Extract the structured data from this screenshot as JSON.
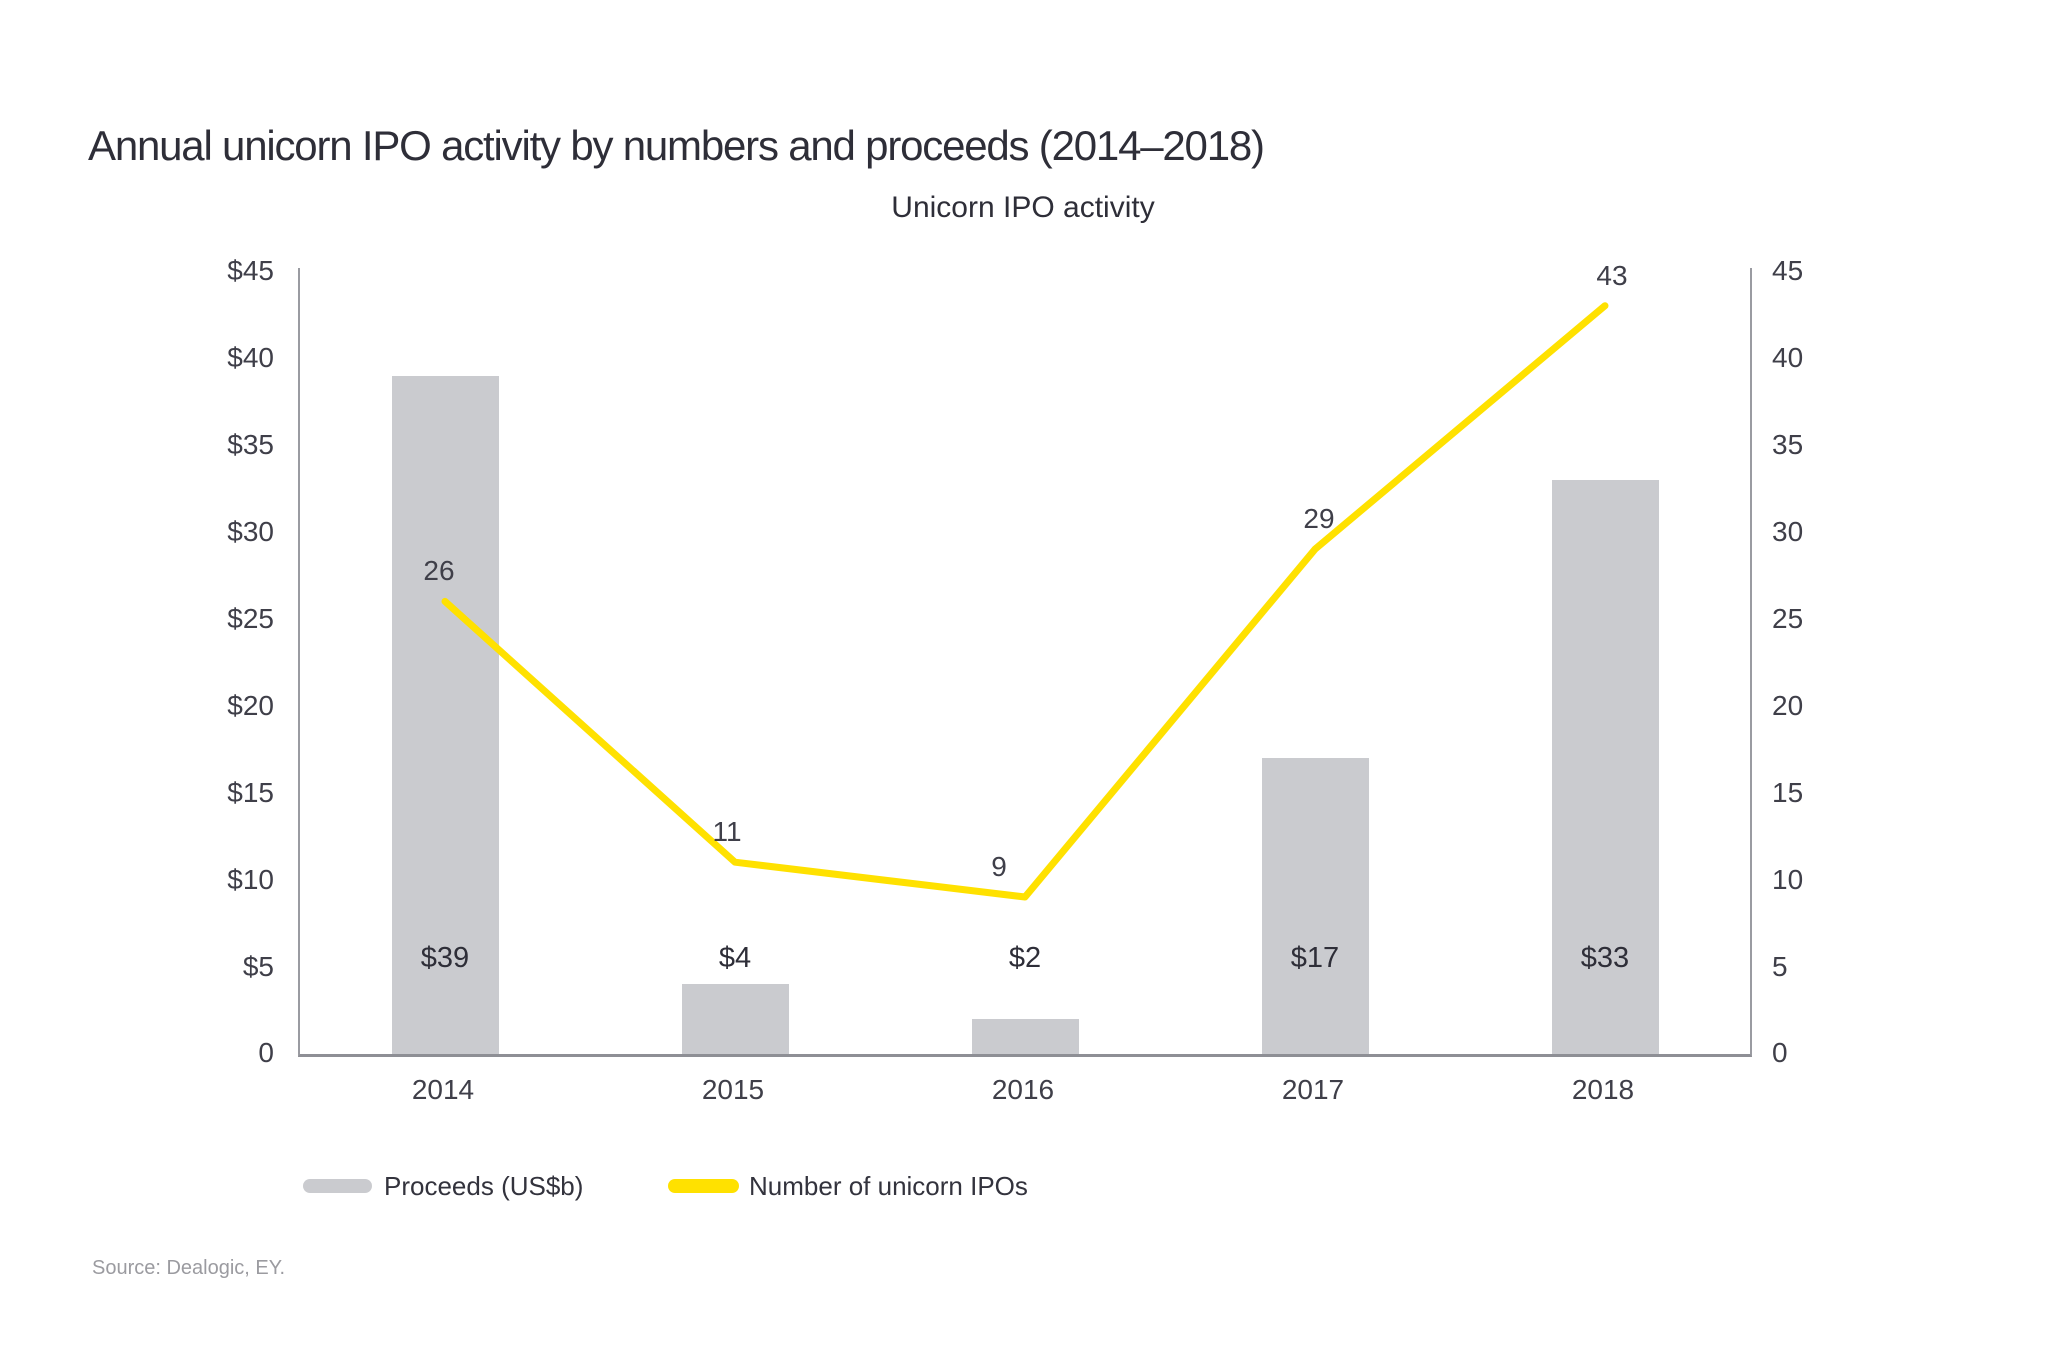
{
  "page": {
    "title": "Annual unicorn IPO activity by numbers and proceeds (2014–2018)",
    "source": "Source: Dealogic, EY.",
    "background": "#FFFFFF"
  },
  "colors": {
    "text_dark": "#2E2E38",
    "axis_text": "#3F3F49",
    "axis_line": "#9A9BA1",
    "source_text": "#9B9BA0"
  },
  "chart_data": {
    "type": "combo",
    "title": "Unicorn IPO activity",
    "categories": [
      "2014",
      "2015",
      "2016",
      "2017",
      "2018"
    ],
    "series": [
      {
        "name": "Proceeds (US$b)",
        "type": "bar",
        "values": [
          39,
          4,
          2,
          17,
          33
        ],
        "value_labels": [
          "$39",
          "$4",
          "$2",
          "$17",
          "$33"
        ],
        "color": "#CACBCF"
      },
      {
        "name": "Number of unicorn IPOs",
        "type": "line",
        "values": [
          26,
          11,
          9,
          29,
          43
        ],
        "value_labels": [
          "26",
          "11",
          "9",
          "29",
          "43"
        ],
        "color": "#FFE100"
      }
    ],
    "left_axis": {
      "ticks": [
        "$45",
        "$40",
        "$35",
        "$30",
        "$25",
        "$20",
        "$15",
        "$10",
        "$5",
        "0"
      ],
      "range": [
        0,
        45
      ]
    },
    "right_axis": {
      "ticks": [
        "45",
        "40",
        "35",
        "30",
        "25",
        "20",
        "15",
        "10",
        "5",
        "0"
      ],
      "range": [
        0,
        45
      ]
    },
    "grid": false,
    "legend_position": "bottom"
  }
}
